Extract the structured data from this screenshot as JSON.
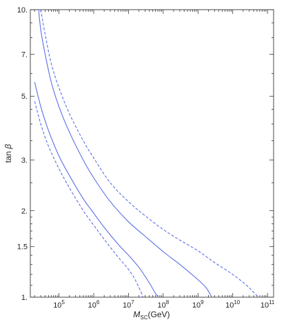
{
  "chart_data": {
    "type": "line",
    "title": "",
    "xlabel": {
      "main": "M",
      "sub": "SC",
      "unit": "(GeV)"
    },
    "ylabel": {
      "main": "tan",
      "symbol": "β"
    },
    "x_scale": "log",
    "y_scale": "log",
    "xlim": [
      15000,
      150000000000
    ],
    "ylim": [
      1,
      10
    ],
    "x_ticks": [
      {
        "value": 100000,
        "base": "10",
        "exp": "5"
      },
      {
        "value": 1000000,
        "base": "10",
        "exp": "6"
      },
      {
        "value": 10000000,
        "base": "10",
        "exp": "7"
      },
      {
        "value": 100000000,
        "base": "10",
        "exp": "8"
      },
      {
        "value": 1000000000,
        "base": "10",
        "exp": "9"
      },
      {
        "value": 10000000000,
        "base": "10",
        "exp": "10"
      },
      {
        "value": 100000000000,
        "base": "10",
        "exp": "11"
      }
    ],
    "y_ticks": [
      {
        "value": 1,
        "label": "1."
      },
      {
        "value": 1.5,
        "label": "1.5"
      },
      {
        "value": 2,
        "label": "2."
      },
      {
        "value": 3,
        "label": "3."
      },
      {
        "value": 5,
        "label": "5."
      },
      {
        "value": 7,
        "label": "7."
      },
      {
        "value": 10,
        "label": "10."
      }
    ],
    "grid": false,
    "colors": {
      "curve": "#5b6ee8",
      "frame": "#333333"
    },
    "series": [
      {
        "style": "solid",
        "x": [
          20000,
          30000,
          50000,
          100000,
          200000,
          500000,
          1000000,
          2000000,
          5000000,
          10000000,
          20000000,
          35000000,
          50000000,
          60000000,
          68000000,
          72000000
        ],
        "y": [
          5.6,
          4.6,
          3.8,
          3.1,
          2.65,
          2.2,
          1.96,
          1.75,
          1.53,
          1.4,
          1.27,
          1.15,
          1.07,
          1.03,
          1.01,
          1.0
        ]
      },
      {
        "style": "dashed",
        "x": [
          20000,
          30000,
          50000,
          100000,
          200000,
          500000,
          1000000,
          2000000,
          5000000,
          10000000,
          15000000,
          20000000,
          24000000,
          26000000
        ],
        "y": [
          4.8,
          4.0,
          3.35,
          2.8,
          2.4,
          2.0,
          1.78,
          1.59,
          1.38,
          1.25,
          1.16,
          1.08,
          1.03,
          1.0
        ]
      },
      {
        "style": "solid",
        "x": [
          26000,
          30000,
          40000,
          60000,
          100000,
          200000,
          500000,
          1000000,
          3000000,
          10000000,
          30000000,
          100000000,
          300000000,
          1000000000,
          1700000000,
          2300000000,
          2500000000
        ],
        "y": [
          10,
          8.5,
          7.0,
          5.6,
          4.6,
          3.75,
          3.0,
          2.6,
          2.15,
          1.83,
          1.63,
          1.44,
          1.3,
          1.15,
          1.08,
          1.02,
          1.0
        ]
      },
      {
        "style": "dashed",
        "x": [
          30000,
          40000,
          60000,
          100000,
          200000,
          500000,
          1000000,
          3000000,
          10000000,
          30000000,
          100000000,
          300000000,
          1000000000,
          3000000000,
          10000000000,
          25000000000,
          40000000000,
          55000000000
        ],
        "y": [
          10,
          8.2,
          6.5,
          5.35,
          4.35,
          3.5,
          3.05,
          2.5,
          2.15,
          1.92,
          1.72,
          1.58,
          1.45,
          1.32,
          1.2,
          1.1,
          1.04,
          1.0
        ]
      }
    ]
  }
}
